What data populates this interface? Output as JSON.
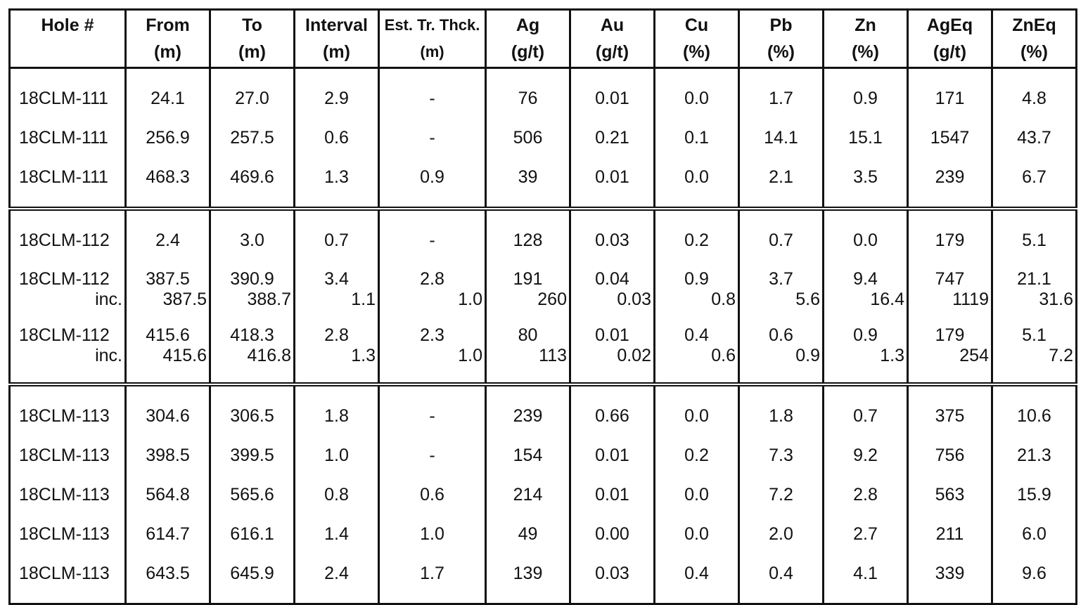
{
  "columns": [
    {
      "line1": "Hole #",
      "line2": ""
    },
    {
      "line1": "From",
      "line2": "(m)"
    },
    {
      "line1": "To",
      "line2": "(m)"
    },
    {
      "line1": "Interval",
      "line2": "(m)"
    },
    {
      "line1": "Est. Tr. Thck.",
      "line2": "(m)"
    },
    {
      "line1": "Ag",
      "line2": "(g/t)"
    },
    {
      "line1": "Au",
      "line2": "(g/t)"
    },
    {
      "line1": "Cu",
      "line2": "(%)"
    },
    {
      "line1": "Pb",
      "line2": "(%)"
    },
    {
      "line1": "Zn",
      "line2": "(%)"
    },
    {
      "line1": "AgEq",
      "line2": "(g/t)"
    },
    {
      "line1": "ZnEq",
      "line2": "(%)"
    }
  ],
  "groups": [
    {
      "rows": [
        {
          "type": "std",
          "cells": [
            "18CLM-111",
            "24.1",
            "27.0",
            "2.9",
            "-",
            "76",
            "0.01",
            "0.0",
            "1.7",
            "0.9",
            "171",
            "4.8"
          ]
        },
        {
          "type": "std",
          "cells": [
            "18CLM-111",
            "256.9",
            "257.5",
            "0.6",
            "-",
            "506",
            "0.21",
            "0.1",
            "14.1",
            "15.1",
            "1547",
            "43.7"
          ]
        },
        {
          "type": "std",
          "cells": [
            "18CLM-111",
            "468.3",
            "469.6",
            "1.3",
            "0.9",
            "39",
            "0.01",
            "0.0",
            "2.1",
            "3.5",
            "239",
            "6.7"
          ]
        }
      ]
    },
    {
      "rows": [
        {
          "type": "std",
          "cells": [
            "18CLM-112",
            "2.4",
            "3.0",
            "0.7",
            "-",
            "128",
            "0.03",
            "0.2",
            "0.7",
            "0.0",
            "179",
            "5.1"
          ]
        },
        {
          "type": "sub",
          "cells": [
            "18CLM-112",
            "387.5",
            "390.9",
            "3.4",
            "2.8",
            "191",
            "0.04",
            "0.9",
            "3.7",
            "9.4",
            "747",
            "21.1"
          ]
        },
        {
          "type": "inc",
          "cells": [
            "inc.",
            "387.5",
            "388.7",
            "1.1",
            "1.0",
            "260",
            "0.03",
            "0.8",
            "5.6",
            "16.4",
            "1119",
            "31.6"
          ]
        },
        {
          "type": "sub",
          "cells": [
            "18CLM-112",
            "415.6",
            "418.3",
            "2.8",
            "2.3",
            "80",
            "0.01",
            "0.4",
            "0.6",
            "0.9",
            "179",
            "5.1"
          ]
        },
        {
          "type": "inc",
          "cells": [
            "inc.",
            "415.6",
            "416.8",
            "1.3",
            "1.0",
            "113",
            "0.02",
            "0.6",
            "0.9",
            "1.3",
            "254",
            "7.2"
          ]
        }
      ]
    },
    {
      "rows": [
        {
          "type": "std",
          "cells": [
            "18CLM-113",
            "304.6",
            "306.5",
            "1.8",
            "-",
            "239",
            "0.66",
            "0.0",
            "1.8",
            "0.7",
            "375",
            "10.6"
          ]
        },
        {
          "type": "std",
          "cells": [
            "18CLM-113",
            "398.5",
            "399.5",
            "1.0",
            "-",
            "154",
            "0.01",
            "0.2",
            "7.3",
            "9.2",
            "756",
            "21.3"
          ]
        },
        {
          "type": "std",
          "cells": [
            "18CLM-113",
            "564.8",
            "565.6",
            "0.8",
            "0.6",
            "214",
            "0.01",
            "0.0",
            "7.2",
            "2.8",
            "563",
            "15.9"
          ]
        },
        {
          "type": "std",
          "cells": [
            "18CLM-113",
            "614.7",
            "616.1",
            "1.4",
            "1.0",
            "49",
            "0.00",
            "0.0",
            "2.0",
            "2.7",
            "211",
            "6.0"
          ]
        },
        {
          "type": "std",
          "cells": [
            "18CLM-113",
            "643.5",
            "645.9",
            "2.4",
            "1.7",
            "139",
            "0.03",
            "0.4",
            "0.4",
            "4.1",
            "339",
            "9.6"
          ]
        }
      ]
    }
  ]
}
